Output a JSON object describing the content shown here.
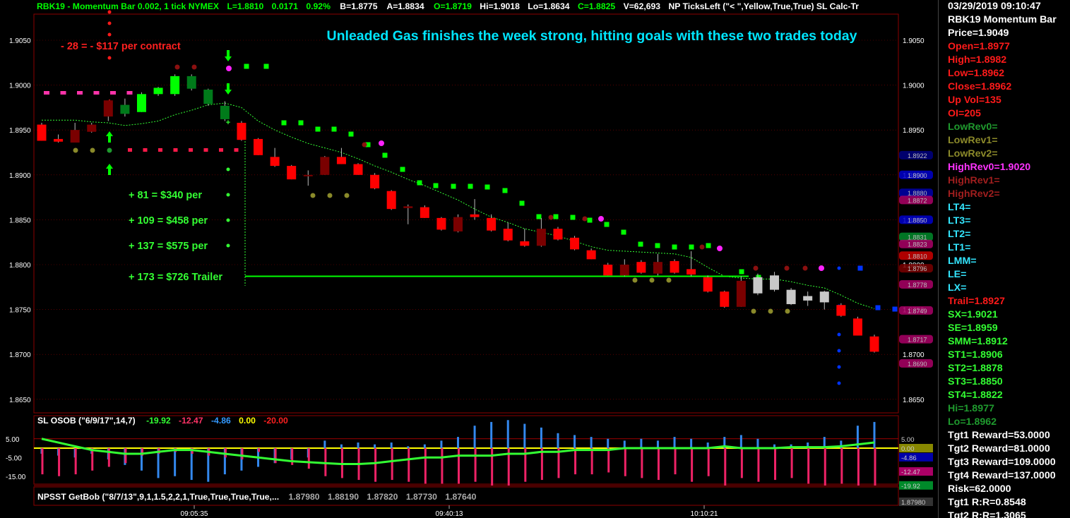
{
  "header": {
    "title": "RBK19 - Momentum Bar 0.002, 1 tick  NYMEX",
    "last": "L=1.8810",
    "change": "0.0171",
    "change_pct": "0.92%",
    "bid": "B=1.8775",
    "ask": "A=1.8834",
    "open": "O=1.8719",
    "high": "Hi=1.9018",
    "low": "Lo=1.8634",
    "close": "C=1.8825",
    "volume": "V=62,693",
    "study": "NP  TicksLeft (\"< \",Yellow,True,True)   SL  Calc-Tr"
  },
  "annotations": {
    "headline": "Unleaded Gas finishes the week strong, hitting goals with these two trades today",
    "loss": "- 28 = - $117 per contract",
    "t1": "+ 81 = $340 per",
    "t2": "+ 109 = $458 per",
    "t3": "+ 137 = $575 per",
    "t4": "+ 173 = $726 Trailer"
  },
  "colors": {
    "up_bar": "#00ff00",
    "down_bar": "#ff0000",
    "dark_up": "#007a1a",
    "dark_down": "#7a0000",
    "neutral": "#c8c8c8",
    "trail": "#00ff00",
    "headline": "#00e6ff",
    "grid": "#8b0000"
  },
  "chart_data": {
    "type": "candlestick",
    "yaxis_ticks": [
      "1.9050",
      "1.9000",
      "1.8950",
      "1.8900",
      "1.8850",
      "1.8800",
      "1.8750",
      "1.8700",
      "1.8650"
    ],
    "ylim": [
      1.8635,
      1.91
    ],
    "xaxis_ticks": [
      "09:05:35",
      "09:40:13",
      "10:10:21"
    ],
    "candles": [
      {
        "o": 1.8956,
        "h": 1.8958,
        "l": 1.8938,
        "c": 1.8938,
        "s": "r"
      },
      {
        "o": 1.894,
        "h": 1.8945,
        "l": 1.8936,
        "c": 1.8937,
        "s": "r"
      },
      {
        "o": 1.895,
        "h": 1.8958,
        "l": 1.8936,
        "c": 1.8936,
        "s": "dr"
      },
      {
        "o": 1.8956,
        "h": 1.8958,
        "l": 1.8947,
        "c": 1.8948,
        "s": "dr"
      },
      {
        "o": 1.8965,
        "h": 1.8982,
        "l": 1.896,
        "c": 1.8983,
        "s": "dr"
      },
      {
        "o": 1.8968,
        "h": 1.8985,
        "l": 1.8965,
        "c": 1.8978,
        "s": "dg"
      },
      {
        "o": 1.897,
        "h": 1.8992,
        "l": 1.897,
        "c": 1.899,
        "s": "g"
      },
      {
        "o": 1.899,
        "h": 1.8998,
        "l": 1.8988,
        "c": 1.8997,
        "s": "g"
      },
      {
        "o": 1.899,
        "h": 1.9012,
        "l": 1.8988,
        "c": 1.901,
        "s": "g"
      },
      {
        "o": 1.8996,
        "h": 1.9012,
        "l": 1.8994,
        "c": 1.901,
        "s": "dg"
      },
      {
        "o": 1.8979,
        "h": 1.8996,
        "l": 1.8977,
        "c": 1.8995,
        "s": "dg"
      },
      {
        "o": 1.8962,
        "h": 1.8982,
        "l": 1.896,
        "c": 1.8977,
        "s": "dg"
      },
      {
        "o": 1.8958,
        "h": 1.896,
        "l": 1.8938,
        "c": 1.8939,
        "s": "r"
      },
      {
        "o": 1.894,
        "h": 1.8941,
        "l": 1.8922,
        "c": 1.8922,
        "s": "r"
      },
      {
        "o": 1.892,
        "h": 1.893,
        "l": 1.8909,
        "c": 1.891,
        "s": "r"
      },
      {
        "o": 1.891,
        "h": 1.8911,
        "l": 1.8895,
        "c": 1.8895,
        "s": "r"
      },
      {
        "o": 1.89,
        "h": 1.8905,
        "l": 1.8888,
        "c": 1.8899,
        "s": "dr"
      },
      {
        "o": 1.892,
        "h": 1.8921,
        "l": 1.89,
        "c": 1.89,
        "s": "dr"
      },
      {
        "o": 1.892,
        "h": 1.893,
        "l": 1.8912,
        "c": 1.8912,
        "s": "r"
      },
      {
        "o": 1.8912,
        "h": 1.8913,
        "l": 1.89,
        "c": 1.89,
        "s": "r"
      },
      {
        "o": 1.89,
        "h": 1.8902,
        "l": 1.8884,
        "c": 1.8885,
        "s": "r"
      },
      {
        "o": 1.8882,
        "h": 1.8883,
        "l": 1.8861,
        "c": 1.8862,
        "s": "r"
      },
      {
        "o": 1.8865,
        "h": 1.8867,
        "l": 1.8845,
        "c": 1.8863,
        "s": "dr"
      },
      {
        "o": 1.8864,
        "h": 1.8866,
        "l": 1.8852,
        "c": 1.8852,
        "s": "r"
      },
      {
        "o": 1.8852,
        "h": 1.8853,
        "l": 1.8838,
        "c": 1.8839,
        "s": "r"
      },
      {
        "o": 1.8853,
        "h": 1.8856,
        "l": 1.8836,
        "c": 1.8837,
        "s": "dr"
      },
      {
        "o": 1.8856,
        "h": 1.8873,
        "l": 1.885,
        "c": 1.8853,
        "s": "r"
      },
      {
        "o": 1.8852,
        "h": 1.8856,
        "l": 1.8837,
        "c": 1.8838,
        "s": "r"
      },
      {
        "o": 1.884,
        "h": 1.8847,
        "l": 1.8826,
        "c": 1.8827,
        "s": "r"
      },
      {
        "o": 1.8826,
        "h": 1.884,
        "l": 1.882,
        "c": 1.8821,
        "s": "r"
      },
      {
        "o": 1.884,
        "h": 1.8852,
        "l": 1.882,
        "c": 1.8821,
        "s": "dr"
      },
      {
        "o": 1.884,
        "h": 1.8842,
        "l": 1.8827,
        "c": 1.8828,
        "s": "r"
      },
      {
        "o": 1.883,
        "h": 1.8832,
        "l": 1.8816,
        "c": 1.8817,
        "s": "r"
      },
      {
        "o": 1.8816,
        "h": 1.8818,
        "l": 1.8806,
        "c": 1.8806,
        "s": "r"
      },
      {
        "o": 1.88,
        "h": 1.8802,
        "l": 1.8788,
        "c": 1.8788,
        "s": "r"
      },
      {
        "o": 1.88,
        "h": 1.8806,
        "l": 1.8787,
        "c": 1.8788,
        "s": "dr"
      },
      {
        "o": 1.8803,
        "h": 1.8805,
        "l": 1.879,
        "c": 1.8791,
        "s": "r"
      },
      {
        "o": 1.8803,
        "h": 1.8812,
        "l": 1.8788,
        "c": 1.879,
        "s": "dr"
      },
      {
        "o": 1.8804,
        "h": 1.8806,
        "l": 1.879,
        "c": 1.8791,
        "s": "r"
      },
      {
        "o": 1.8795,
        "h": 1.8815,
        "l": 1.8787,
        "c": 1.8789,
        "s": "r"
      },
      {
        "o": 1.8786,
        "h": 1.8788,
        "l": 1.8769,
        "c": 1.877,
        "s": "r"
      },
      {
        "o": 1.877,
        "h": 1.8771,
        "l": 1.8752,
        "c": 1.8753,
        "s": "r"
      },
      {
        "o": 1.8782,
        "h": 1.8787,
        "l": 1.8753,
        "c": 1.8753,
        "s": "dr"
      },
      {
        "o": 1.8768,
        "h": 1.879,
        "l": 1.8766,
        "c": 1.8786,
        "s": "n"
      },
      {
        "o": 1.8772,
        "h": 1.8792,
        "l": 1.877,
        "c": 1.8788,
        "s": "n"
      },
      {
        "o": 1.8756,
        "h": 1.8774,
        "l": 1.8755,
        "c": 1.8772,
        "s": "n"
      },
      {
        "o": 1.876,
        "h": 1.877,
        "l": 1.8754,
        "c": 1.8765,
        "s": "n"
      },
      {
        "o": 1.8758,
        "h": 1.8771,
        "l": 1.875,
        "c": 1.877,
        "s": "n"
      },
      {
        "o": 1.8755,
        "h": 1.8757,
        "l": 1.8742,
        "c": 1.8743,
        "s": "r"
      },
      {
        "o": 1.874,
        "h": 1.8742,
        "l": 1.8721,
        "c": 1.8721,
        "s": "r"
      },
      {
        "o": 1.872,
        "h": 1.8722,
        "l": 1.8702,
        "c": 1.8703,
        "s": "r"
      }
    ],
    "stop_line": [
      1.8961,
      1.8961,
      1.8961,
      1.8959,
      1.8958,
      1.8955,
      1.8957,
      1.896,
      1.8967,
      1.8972,
      1.8978,
      1.898,
      1.8975,
      1.896,
      1.895,
      1.8942,
      1.8935,
      1.893,
      1.8925,
      1.8918,
      1.891,
      1.8903,
      1.8895,
      1.8888,
      1.888,
      1.8872,
      1.8862,
      1.8853,
      1.8847,
      1.884,
      1.8836,
      1.8832,
      1.8826,
      1.882,
      1.8816,
      1.8815,
      1.8814,
      1.8813,
      1.8812,
      1.8808,
      1.8797,
      1.8787,
      1.8785,
      1.8784,
      1.8784,
      1.8781,
      1.8777,
      1.8774,
      1.8766,
      1.8757,
      1.8751
    ],
    "trail_level": 1.8787,
    "osob_values": {
      "v1": "-19.92",
      "v2": "-12.47",
      "v3": "-4.86",
      "v4": "0.00",
      "v5": "-20.00"
    },
    "osob_axis": [
      "5.00",
      "-5.00",
      "-15.00"
    ],
    "getbob_values": [
      "1.87980",
      "1.88190",
      "1.87820",
      "1.87730",
      "1.87640"
    ],
    "right_badges": [
      "1.8922",
      "1.8900",
      "1.8880",
      "1.8872",
      "1.8850",
      "1.8831",
      "1.8823",
      "1.8810",
      "1.8796",
      "1.8778",
      "1.8749",
      "1.8717",
      "1.8690"
    ],
    "osob_right_labels": [
      "5.00",
      "0.00",
      "-4.86",
      "-12.47",
      "-19.92"
    ],
    "getbob_right_label": "1.87980"
  },
  "osob_title": "SL  OSOB (\"6/9/17\",14,7)",
  "getbob_title": "NPSST  GetBob (\"8/7/13\",9,1,1.5,2,2,1,True,True,True,True,...",
  "sidepanel": {
    "rows": [
      {
        "text": "03/29/2019 09:10:47",
        "color": "#ffffff"
      },
      {
        "text": "RBK19 Momentum Bar",
        "color": "#ffffff"
      },
      {
        "text": "Price=1.9049",
        "color": "#ffffff"
      },
      {
        "text": "Open=1.8977",
        "color": "#ff1a1a"
      },
      {
        "text": "High=1.8982",
        "color": "#ff1a1a"
      },
      {
        "text": "Low=1.8962",
        "color": "#ff1a1a"
      },
      {
        "text": "Close=1.8962",
        "color": "#ff1a1a"
      },
      {
        "text": "Up Vol=135",
        "color": "#ff1a1a"
      },
      {
        "text": "OI=205",
        "color": "#ff1a1a"
      },
      {
        "text": "LowRev0=",
        "color": "#1f9a2e"
      },
      {
        "text": "LowRev1=",
        "color": "#8c8a2a"
      },
      {
        "text": "LowRev2=",
        "color": "#8c8a2a"
      },
      {
        "text": "HighRev0=1.9020",
        "color": "#ff33ff"
      },
      {
        "text": "HighRev1=",
        "color": "#a01e1e"
      },
      {
        "text": "HighRev2=",
        "color": "#a01e1e"
      },
      {
        "text": "LT4=",
        "color": "#33e6ff"
      },
      {
        "text": "LT3=",
        "color": "#33e6ff"
      },
      {
        "text": "LT2=",
        "color": "#33e6ff"
      },
      {
        "text": "LT1=",
        "color": "#33e6ff"
      },
      {
        "text": "LMM=",
        "color": "#33e6ff"
      },
      {
        "text": "LE=",
        "color": "#33e6ff"
      },
      {
        "text": "LX=",
        "color": "#33e6ff"
      },
      {
        "text": "Trail=1.8927",
        "color": "#ff1a1a"
      },
      {
        "text": "SX=1.9021",
        "color": "#33ff33"
      },
      {
        "text": "SE=1.8959",
        "color": "#33ff33"
      },
      {
        "text": "SMM=1.8912",
        "color": "#33ff33"
      },
      {
        "text": "ST1=1.8906",
        "color": "#33ff33"
      },
      {
        "text": "ST2=1.8878",
        "color": "#33ff33"
      },
      {
        "text": "ST3=1.8850",
        "color": "#33ff33"
      },
      {
        "text": "ST4=1.8822",
        "color": "#33ff33"
      },
      {
        "text": "Hi=1.8977",
        "color": "#1f9a2e"
      },
      {
        "text": "Lo=1.8962",
        "color": "#1f9a2e"
      },
      {
        "text": "Tgt1 Reward=53.0000",
        "color": "#ffffff"
      },
      {
        "text": "Tgt2 Reward=81.0000",
        "color": "#ffffff"
      },
      {
        "text": "Tgt3 Reward=109.0000",
        "color": "#ffffff"
      },
      {
        "text": "Tgt4 Reward=137.0000",
        "color": "#ffffff"
      },
      {
        "text": "Risk=62.0000",
        "color": "#ffffff"
      },
      {
        "text": "Tgt1 R:R=0.8548",
        "color": "#ffffff"
      },
      {
        "text": "Tgt2 R:R=1.3065",
        "color": "#ffffff"
      }
    ]
  }
}
